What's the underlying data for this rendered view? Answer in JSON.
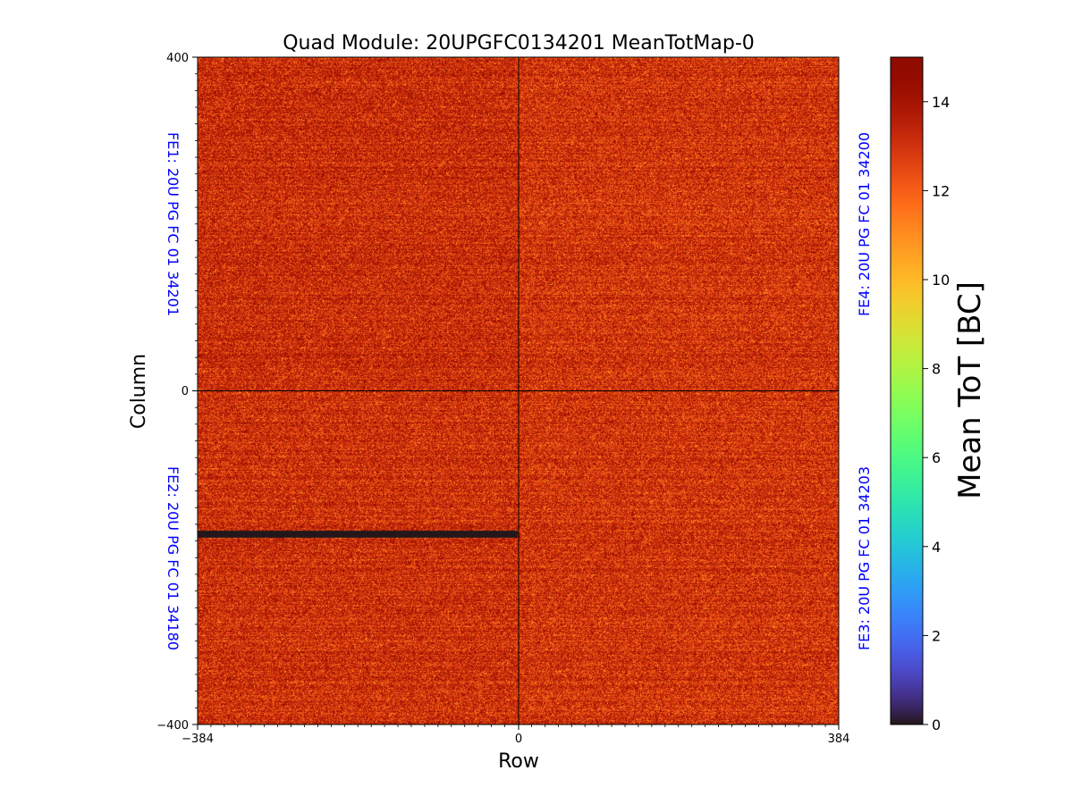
{
  "chart_data": {
    "type": "heatmap",
    "title": "Quad Module: 20UPGFC0134201 MeanTotMap-0",
    "xlabel": "Row",
    "ylabel": "Column",
    "xlim": [
      -384,
      384
    ],
    "ylim": [
      -400,
      400
    ],
    "x_ticks": [
      "−384",
      "0",
      "384"
    ],
    "y_ticks": [
      "400",
      "0",
      "−400"
    ],
    "x_tick_values": [
      -384,
      0,
      384
    ],
    "y_tick_values": [
      400,
      0,
      -400
    ],
    "colorbar": {
      "label": "Mean ToT [BC]",
      "colormap": "turbo",
      "range": [
        0,
        15
      ],
      "ticks": [
        "0",
        "2",
        "4",
        "6",
        "8",
        "10",
        "12",
        "14"
      ],
      "tick_values": [
        0,
        2,
        4,
        6,
        8,
        10,
        12,
        14
      ]
    },
    "quadrants": [
      {
        "name": "FE1",
        "label": "FE1: 20U PG FC 01 34201",
        "position": "top-left",
        "x_range": [
          -384,
          0
        ],
        "y_range": [
          0,
          400
        ],
        "mean_tot": 13.2,
        "spread": 1.3
      },
      {
        "name": "FE4",
        "label": "FE4: 20U PG FC 01 34200",
        "position": "top-right",
        "x_range": [
          0,
          384
        ],
        "y_range": [
          0,
          400
        ],
        "mean_tot": 13.0,
        "spread": 1.3
      },
      {
        "name": "FE2",
        "label": "FE2: 20U PG FC 01 34180",
        "position": "bottom-left",
        "x_range": [
          -384,
          0
        ],
        "y_range": [
          -400,
          0
        ],
        "mean_tot": 13.1,
        "spread": 1.3
      },
      {
        "name": "FE3",
        "label": "FE3: 20U PG FC 01 34203",
        "position": "bottom-right",
        "x_range": [
          0,
          384
        ],
        "y_range": [
          -400,
          0
        ],
        "mean_tot": 13.0,
        "spread": 1.3
      }
    ],
    "dead_regions": [
      {
        "quadrant": "FE2",
        "x_range": [
          -384,
          0
        ],
        "y_range": [
          -176,
          -168
        ],
        "value": 0
      }
    ],
    "label_color": "#0000ff"
  }
}
